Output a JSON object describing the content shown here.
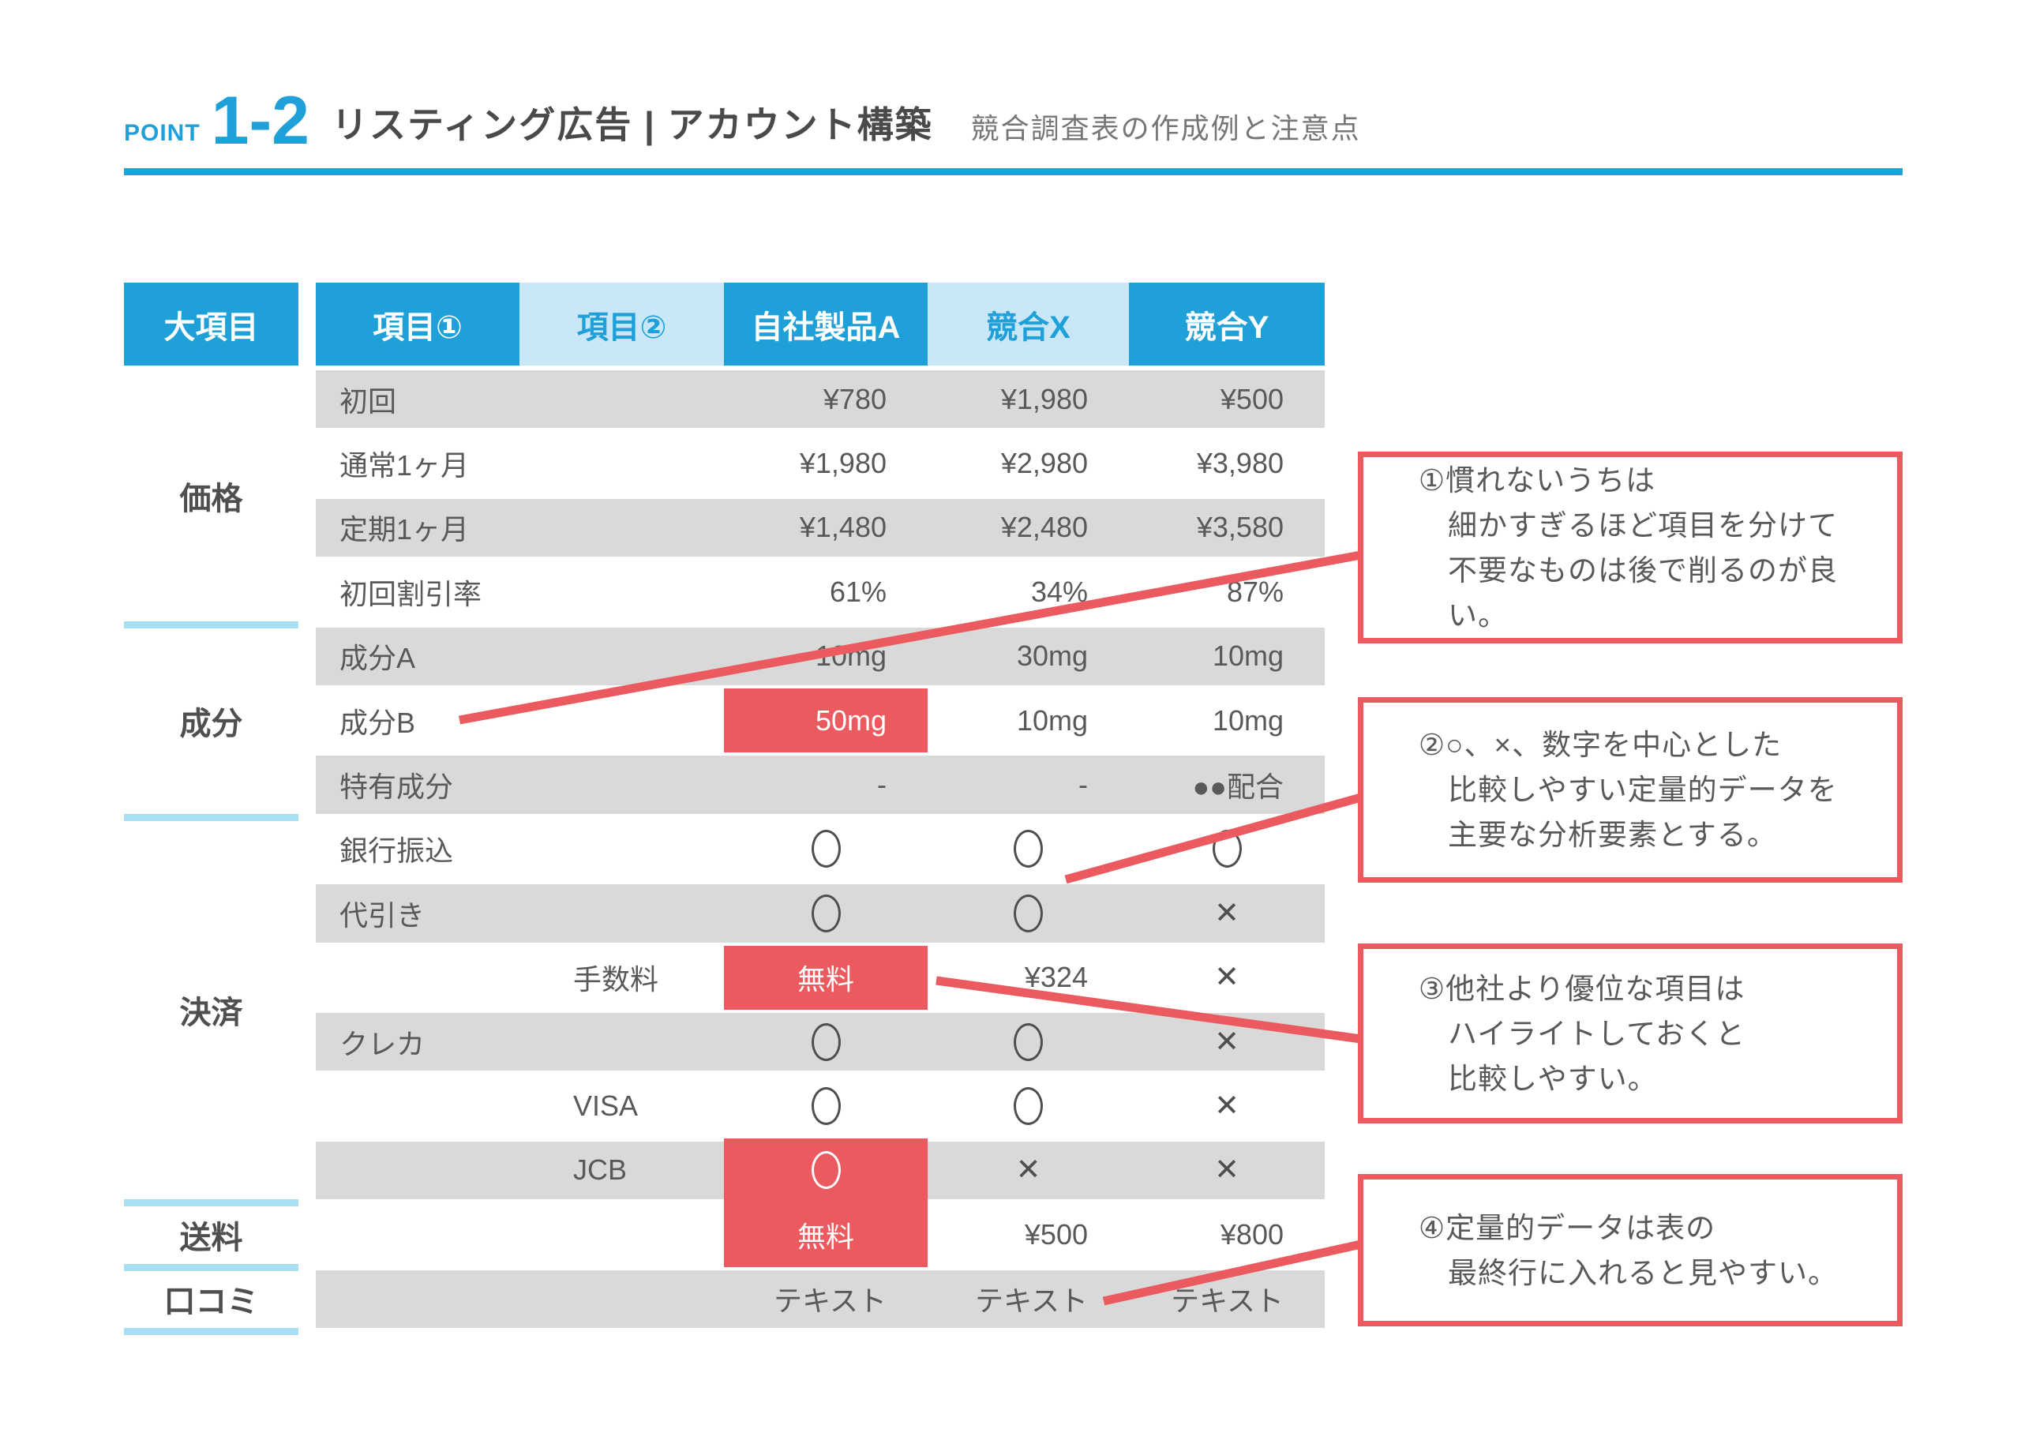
{
  "header": {
    "point_label": "POINT",
    "point_number": "1-2",
    "title": "リスティング広告 | アカウント構築",
    "subtitle": "競合調査表の作成例と注意点"
  },
  "colors": {
    "blue": "#1FA0D9",
    "light_blue": "#C9E7F6",
    "pale_rule": "#A9DFF2",
    "row_gray": "#D9D9D9",
    "red": "#EA5A5F",
    "text_dark": "#4A4A4A",
    "text_gray": "#595959",
    "subtitle_gray": "#767676"
  },
  "table": {
    "corner_header": "大項目",
    "columns": [
      {
        "label": "項目①",
        "style": "blue"
      },
      {
        "label": "項目②",
        "style": "light"
      },
      {
        "label": "自社製品A",
        "style": "blue"
      },
      {
        "label": "競合X",
        "style": "light"
      },
      {
        "label": "競合Y",
        "style": "blue"
      }
    ],
    "sections": [
      {
        "label": "価格",
        "rows": 4
      },
      {
        "label": "成分",
        "rows": 3
      },
      {
        "label": "決済",
        "rows": 6
      },
      {
        "label": "送料",
        "rows": 1
      },
      {
        "label": "口コミ",
        "rows": 1
      }
    ],
    "rows": [
      {
        "bg": "gray",
        "item1": "初回",
        "item2": "",
        "vals": [
          {
            "t": "¥780",
            "a": "r"
          },
          {
            "t": "¥1,980",
            "a": "r"
          },
          {
            "t": "¥500",
            "a": "r"
          }
        ]
      },
      {
        "bg": "white",
        "item1": "通常1ヶ月",
        "item2": "",
        "vals": [
          {
            "t": "¥1,980",
            "a": "r"
          },
          {
            "t": "¥2,980",
            "a": "r"
          },
          {
            "t": "¥3,980",
            "a": "r"
          }
        ]
      },
      {
        "bg": "gray",
        "item1": "定期1ヶ月",
        "item2": "",
        "vals": [
          {
            "t": "¥1,480",
            "a": "r"
          },
          {
            "t": "¥2,480",
            "a": "r"
          },
          {
            "t": "¥3,580",
            "a": "r"
          }
        ]
      },
      {
        "bg": "white",
        "item1": "初回割引率",
        "item2": "",
        "vals": [
          {
            "t": "61%",
            "a": "r"
          },
          {
            "t": "34%",
            "a": "r"
          },
          {
            "t": "87%",
            "a": "r"
          }
        ]
      },
      {
        "bg": "gray",
        "item1": "成分A",
        "item2": "",
        "vals": [
          {
            "t": "10mg",
            "a": "r"
          },
          {
            "t": "30mg",
            "a": "r"
          },
          {
            "t": "10mg",
            "a": "r"
          }
        ]
      },
      {
        "bg": "white",
        "item1": "成分B",
        "item2": "",
        "vals": [
          {
            "t": "50mg",
            "a": "r",
            "red": true
          },
          {
            "t": "10mg",
            "a": "r"
          },
          {
            "t": "10mg",
            "a": "r"
          }
        ]
      },
      {
        "bg": "gray",
        "item1": "特有成分",
        "item2": "",
        "vals": [
          {
            "t": "-",
            "a": "r"
          },
          {
            "t": "-",
            "a": "r"
          },
          {
            "t": "●●配合",
            "a": "r"
          }
        ]
      },
      {
        "bg": "white",
        "item1": "銀行振込",
        "item2": "",
        "vals": [
          {
            "k": "circle"
          },
          {
            "k": "circle"
          },
          {
            "k": "circle"
          }
        ]
      },
      {
        "bg": "gray",
        "item1": "代引き",
        "item2": "",
        "vals": [
          {
            "k": "circle"
          },
          {
            "k": "circle"
          },
          {
            "k": "cross"
          }
        ]
      },
      {
        "bg": "white",
        "item1": "",
        "item2": "手数料",
        "vals": [
          {
            "t": "無料",
            "a": "c",
            "red": true
          },
          {
            "t": "¥324",
            "a": "r"
          },
          {
            "k": "cross"
          }
        ]
      },
      {
        "bg": "gray",
        "item1": "クレカ",
        "item2": "",
        "vals": [
          {
            "k": "circle"
          },
          {
            "k": "circle"
          },
          {
            "k": "cross"
          }
        ]
      },
      {
        "bg": "white",
        "item1": "",
        "item2": "VISA",
        "vals": [
          {
            "k": "circle"
          },
          {
            "k": "circle"
          },
          {
            "k": "cross"
          }
        ]
      },
      {
        "bg": "gray",
        "item1": "",
        "item2": "JCB",
        "vals": [
          {
            "k": "circle",
            "red": true
          },
          {
            "k": "cross"
          },
          {
            "k": "cross"
          }
        ]
      },
      {
        "bg": "white",
        "item1": "",
        "item2": "",
        "vals": [
          {
            "t": "無料",
            "a": "c",
            "red": true
          },
          {
            "t": "¥500",
            "a": "r"
          },
          {
            "t": "¥800",
            "a": "r"
          }
        ]
      },
      {
        "bg": "gray",
        "item1": "",
        "item2": "",
        "vals": [
          {
            "t": "テキスト",
            "a": "r"
          },
          {
            "t": "テキスト",
            "a": "r"
          },
          {
            "t": "テキスト",
            "a": "r"
          }
        ]
      }
    ]
  },
  "annotations": [
    {
      "lines": [
        "①慣れないうちは",
        "細かすぎるほど項目を分けて",
        "不要なものは後で削るのが良い。"
      ]
    },
    {
      "lines": [
        "②○、×、数字を中心とした",
        "比較しやすい定量的データを",
        "主要な分析要素とする。"
      ]
    },
    {
      "lines": [
        "③他社より優位な項目は",
        "ハイライトしておくと",
        "比較しやすい。"
      ]
    },
    {
      "lines": [
        "④定量的データは表の",
        "最終行に入れると見やすい。"
      ]
    }
  ]
}
